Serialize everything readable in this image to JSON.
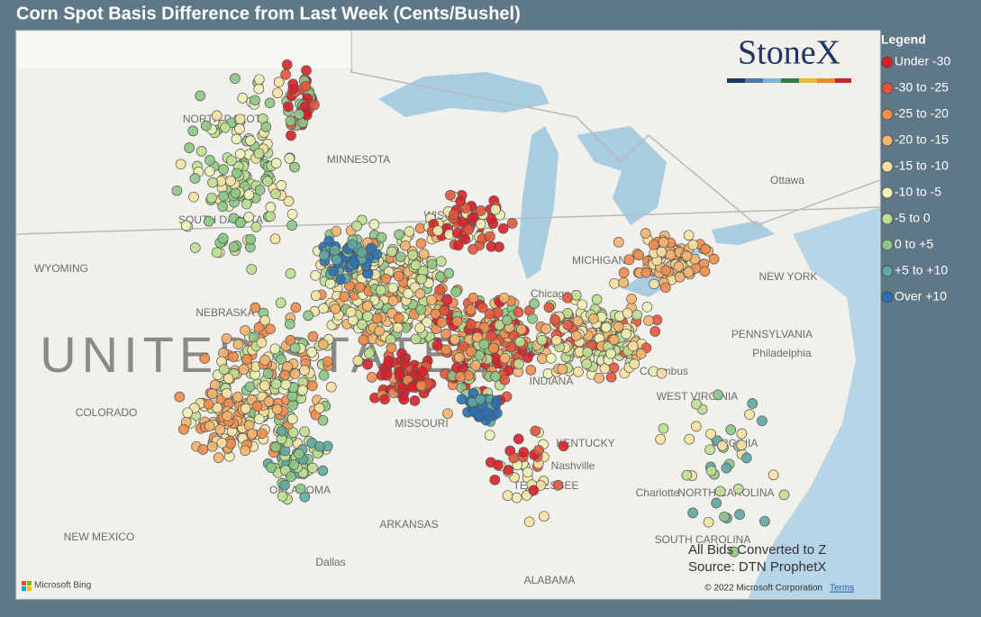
{
  "title": "Corn Spot Basis Difference from Last Week (Cents/Bushel)",
  "legend": {
    "title": "Legend",
    "items": [
      {
        "label": "Under -30",
        "color": "#d8202a"
      },
      {
        "label": "-30 to -25",
        "color": "#e6553b"
      },
      {
        "label": "-25 to -20",
        "color": "#ef8c4e"
      },
      {
        "label": "-20 to -15",
        "color": "#f4b46f"
      },
      {
        "label": "-15 to -10",
        "color": "#f6e2a2"
      },
      {
        "label": "-10 to -5",
        "color": "#eef2b6"
      },
      {
        "label": "-5 to 0",
        "color": "#bfdf92"
      },
      {
        "label": "0 to +5",
        "color": "#8dc785"
      },
      {
        "label": "+5 to +10",
        "color": "#5ea8a2"
      },
      {
        "label": "Over +10",
        "color": "#2a70b5"
      }
    ]
  },
  "logo": "StoneX",
  "map_labels": [
    "NORTH DAKOTA",
    "SOUTH DAKOTA",
    "MINNESOTA",
    "WISCONSIN",
    "WYOMING",
    "NEBRASKA",
    "COLORADO",
    "MISSOURI",
    "OKLAHOMA",
    "ARKANSAS",
    "NEW MEXICO",
    "KENTUCKY",
    "TENNESSEE",
    "WEST VIRGINIA",
    "VIRGINIA",
    "NORTH CAROLINA",
    "SOUTH CAROLINA",
    "ALABAMA",
    "PENNSYLVANIA",
    "NEW YORK",
    "MICHIGAN",
    "INDIANA",
    "Chicago",
    "Columbus",
    "Nashville",
    "Charlotte",
    "Dallas",
    "Ottawa",
    "Philadelphia",
    "UNITED STATES"
  ],
  "annotation": [
    "All Bids Converted to Z",
    "Source: DTN ProphetX"
  ],
  "attribution": {
    "provider": "Microsoft Bing",
    "copyright": "© 2022 Microsoft Corporation",
    "terms": "Terms"
  }
}
